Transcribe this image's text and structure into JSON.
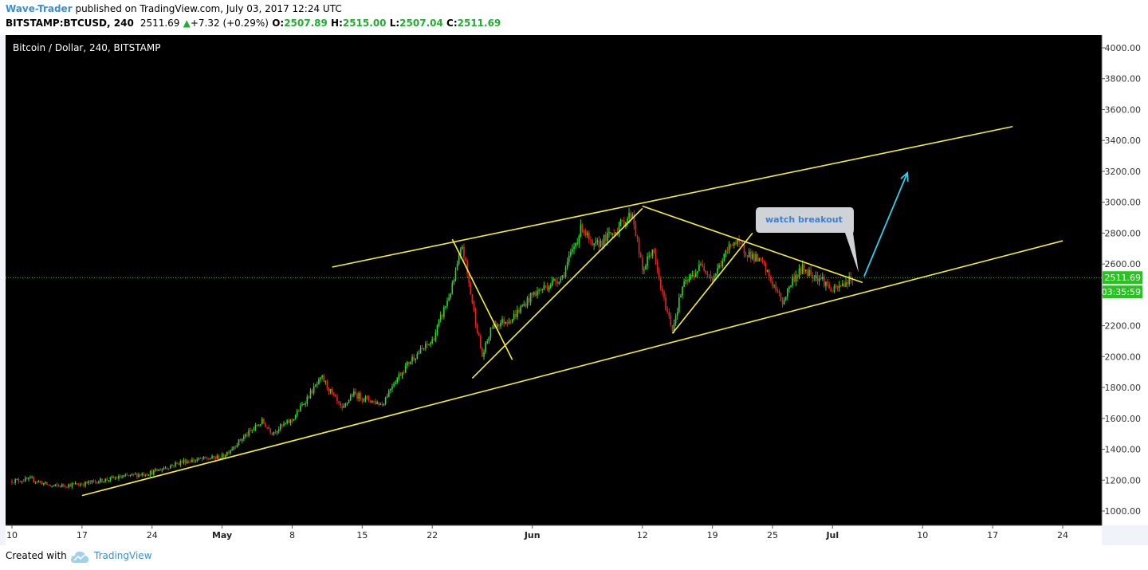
{
  "header": {
    "author": "Wave-Trader",
    "published_text": "published on TradingView.com, July 03, 2017 12:24 UTC",
    "symbol": "BITSTAMP:BTCUSD, 240",
    "last": "2511.69",
    "change": "+7.32 (+0.29%)",
    "o_label": "O:",
    "o_value": "2507.89",
    "h_label": "H:",
    "h_value": "2515.00",
    "l_label": "L:",
    "l_value": "2507.04",
    "c_label": "C:",
    "c_value": "2511.69"
  },
  "chart_data": {
    "type": "candlestick",
    "title": "Bitcoin / Dollar, 240, BITSTAMP",
    "ylim": [
      960,
      4080
    ],
    "y_ticks": [
      "1000.00",
      "1200.00",
      "1400.00",
      "1600.00",
      "1800.00",
      "2000.00",
      "2200.00",
      "2400.00",
      "2600.00",
      "2800.00",
      "3000.00",
      "3200.00",
      "3400.00",
      "3600.00",
      "3800.00",
      "4000.00"
    ],
    "x_range_days": [
      "2017-04-10",
      "2017-04-27+60"
    ],
    "x_ticks": [
      {
        "date": "2017-04-10",
        "label": "10"
      },
      {
        "date": "2017-04-17",
        "label": "17"
      },
      {
        "date": "2017-04-24",
        "label": "24"
      },
      {
        "date": "2017-05-01",
        "label": "May"
      },
      {
        "date": "2017-05-08",
        "label": "8"
      },
      {
        "date": "2017-05-15",
        "label": "15"
      },
      {
        "date": "2017-05-22",
        "label": "22"
      },
      {
        "date": "2017-06-01",
        "label": "Jun"
      },
      {
        "date": "2017-06-12",
        "label": "12"
      },
      {
        "date": "2017-06-19",
        "label": "19"
      },
      {
        "date": "2017-06-25",
        "label": "25"
      },
      {
        "date": "2017-07-01",
        "label": "Jul"
      },
      {
        "date": "2017-07-10",
        "label": "10"
      },
      {
        "date": "2017-07-17",
        "label": "17"
      },
      {
        "date": "2017-07-24",
        "label": "24"
      }
    ],
    "price_path": [
      [
        "2017-04-10",
        1195
      ],
      [
        "2017-04-12",
        1205
      ],
      [
        "2017-04-14",
        1160
      ],
      [
        "2017-04-17",
        1175
      ],
      [
        "2017-04-20",
        1210
      ],
      [
        "2017-04-24",
        1250
      ],
      [
        "2017-04-27",
        1320
      ],
      [
        "2017-05-01",
        1350
      ],
      [
        "2017-05-03",
        1470
      ],
      [
        "2017-05-05",
        1580
      ],
      [
        "2017-05-06",
        1510
      ],
      [
        "2017-05-08",
        1590
      ],
      [
        "2017-05-10",
        1780
      ],
      [
        "2017-05-11",
        1860
      ],
      [
        "2017-05-13",
        1650
      ],
      [
        "2017-05-14",
        1760
      ],
      [
        "2017-05-17",
        1690
      ],
      [
        "2017-05-18",
        1820
      ],
      [
        "2017-05-20",
        1990
      ],
      [
        "2017-05-22",
        2100
      ],
      [
        "2017-05-24",
        2450
      ],
      [
        "2017-05-25",
        2720
      ],
      [
        "2017-05-26",
        2350
      ],
      [
        "2017-05-27",
        2000
      ],
      [
        "2017-05-28",
        2200
      ],
      [
        "2017-05-30",
        2250
      ],
      [
        "2017-06-01",
        2400
      ],
      [
        "2017-06-04",
        2520
      ],
      [
        "2017-06-06",
        2850
      ],
      [
        "2017-06-07",
        2700
      ],
      [
        "2017-06-09",
        2800
      ],
      [
        "2017-06-11",
        2930
      ],
      [
        "2017-06-12",
        2550
      ],
      [
        "2017-06-13",
        2700
      ],
      [
        "2017-06-14",
        2400
      ],
      [
        "2017-06-15",
        2180
      ],
      [
        "2017-06-16",
        2450
      ],
      [
        "2017-06-18",
        2600
      ],
      [
        "2017-06-19",
        2500
      ],
      [
        "2017-06-21",
        2750
      ],
      [
        "2017-06-22",
        2700
      ],
      [
        "2017-06-24",
        2600
      ],
      [
        "2017-06-26",
        2350
      ],
      [
        "2017-06-27",
        2500
      ],
      [
        "2017-06-28",
        2570
      ],
      [
        "2017-06-30",
        2500
      ],
      [
        "2017-07-01",
        2420
      ],
      [
        "2017-07-03",
        2512
      ]
    ],
    "trend_lines": [
      {
        "from": [
          "2017-05-12",
          2580
        ],
        "to": [
          "2017-07-19",
          3490
        ],
        "color": "#f6f127"
      },
      {
        "from": [
          "2017-04-17",
          1100
        ],
        "to": [
          "2017-07-24",
          2750
        ],
        "color": "#f6f127"
      },
      {
        "from": [
          "2017-05-24",
          2760
        ],
        "to": [
          "2017-05-30",
          1980
        ],
        "color": "#f6f127"
      },
      {
        "from": [
          "2017-05-26",
          1860
        ],
        "to": [
          "2017-06-12",
          2960
        ],
        "color": "#f6f127"
      },
      {
        "from": [
          "2017-06-12",
          2975
        ],
        "to": [
          "2017-07-04",
          2480
        ],
        "color": "#f6f127"
      },
      {
        "from": [
          "2017-06-15",
          2150
        ],
        "to": [
          "2017-06-23",
          2800
        ],
        "color": "#f6f127"
      }
    ],
    "arrow": {
      "from": [
        "2017-07-04",
        2520
      ],
      "to": [
        "2017-07-08",
        3190
      ],
      "color": "#2fd0ef"
    },
    "annotation": "watch breakout",
    "last_price_label": "2511.69",
    "countdown_label": "03:35:59",
    "colors": {
      "background": "#000000",
      "up": "#1fe023",
      "down": "#e8251c",
      "trend": "#f6f127",
      "arrow": "#2fd0ef"
    }
  },
  "footer": {
    "created_with": "Created with",
    "brand": "TradingView"
  }
}
